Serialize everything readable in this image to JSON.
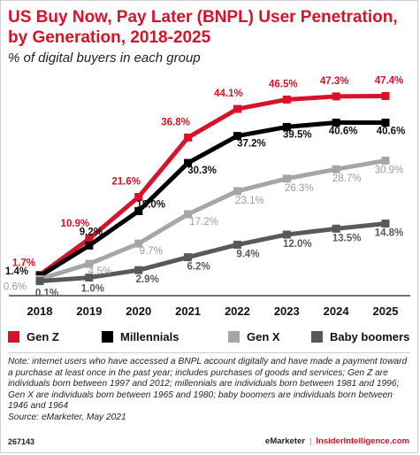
{
  "header": {
    "title": "US Buy Now, Pay Later (BNPL) User Penetration, by Generation, 2018-2025",
    "subtitle": "% of digital buyers in each group"
  },
  "colors": {
    "gen_z": "#d7132a",
    "millennials": "#000000",
    "gen_x": "#a6a6a6",
    "baby_boomers": "#595959"
  },
  "chart_data": {
    "type": "line",
    "title": "US Buy Now, Pay Later (BNPL) User Penetration, by Generation, 2018-2025",
    "subtitle": "% of digital buyers in each group",
    "xlabel": "",
    "ylabel": "",
    "x": [
      "2018",
      "2019",
      "2020",
      "2021",
      "2022",
      "2023",
      "2024",
      "2025"
    ],
    "ylim": [
      0,
      50
    ],
    "grid": false,
    "legend": "bottom",
    "series": [
      {
        "name": "Gen Z",
        "key": "gen_z",
        "values": [
          1.7,
          10.9,
          21.6,
          36.8,
          44.1,
          46.5,
          47.3,
          47.4
        ],
        "labels": [
          "1.7%",
          "10.9%",
          "21.6%",
          "36.8%",
          "44.1%",
          "46.5%",
          "47.3%",
          "47.4%"
        ]
      },
      {
        "name": "Millennials",
        "key": "millennials",
        "values": [
          1.4,
          9.2,
          18.0,
          30.3,
          37.2,
          39.5,
          40.6,
          40.6
        ],
        "labels": [
          "1.4%",
          "9.2%",
          "18.0%",
          "30.3%",
          "37.2%",
          "39.5%",
          "40.6%",
          "40.6%"
        ]
      },
      {
        "name": "Gen X",
        "key": "gen_x",
        "values": [
          0.6,
          4.5,
          9.7,
          17.2,
          23.1,
          26.3,
          28.7,
          30.9
        ],
        "labels": [
          "0.6%",
          "4.5%",
          "9.7%",
          "17.2%",
          "23.1%",
          "26.3%",
          "28.7%",
          "30.9%"
        ]
      },
      {
        "name": "Baby boomers",
        "key": "baby_boomers",
        "values": [
          0.1,
          1.0,
          2.9,
          6.2,
          9.4,
          12.0,
          13.5,
          14.8
        ],
        "labels": [
          "0.1%",
          "1.0%",
          "2.9%",
          "6.2%",
          "9.4%",
          "12.0%",
          "13.5%",
          "14.8%"
        ]
      }
    ]
  },
  "note": "Note: internet users who have accessed a BNPL account digitally and have made a payment toward a purchase at least once in the past year; includes purchases of goods and services; Gen Z are individuals born between 1997 and 2012; millennials are individuals born between 1981 and 1996; Gen X are individuals born between 1965 and 1980; baby boomers are individuals born between 1946 and 1964",
  "source": "Source: eMarketer, May 2021",
  "footer": {
    "chart_id": "267143",
    "brand_left": "eMarketer",
    "separator": "|",
    "brand_right": "InsiderIntelligence.com"
  }
}
